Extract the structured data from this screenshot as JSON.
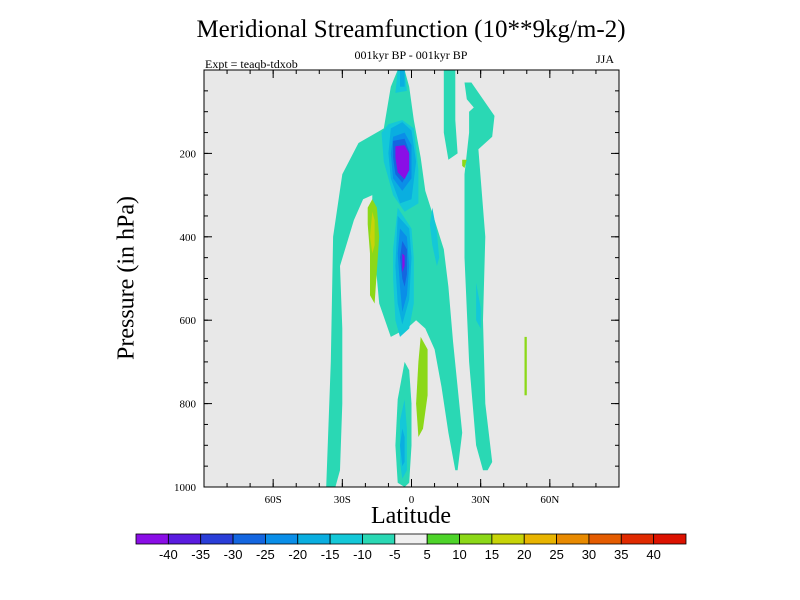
{
  "chart_data": {
    "type": "heatmap",
    "title": "Meridional Streamfunction (10**9kg/m-2)",
    "subtitle": "001kyr BP - 001kyr BP",
    "experiment_label": "Expt = teaqb-tdxob",
    "season_label": "JJA",
    "xlabel": "Latitude",
    "ylabel": "Pressure (in hPa)",
    "xlim": [
      -90,
      90
    ],
    "ylim": [
      1000,
      0
    ],
    "x_ticks": [
      {
        "value": -60,
        "label": "60S"
      },
      {
        "value": -30,
        "label": "30S"
      },
      {
        "value": 0,
        "label": "0"
      },
      {
        "value": 30,
        "label": "30N"
      },
      {
        "value": 60,
        "label": "60N"
      }
    ],
    "y_ticks": [
      {
        "value": 200,
        "label": "200"
      },
      {
        "value": 400,
        "label": "400"
      },
      {
        "value": 600,
        "label": "600"
      },
      {
        "value": 800,
        "label": "800"
      },
      {
        "value": 1000,
        "label": "1000"
      }
    ],
    "background_color": "#e8e8e8",
    "colorbar": {
      "labels": [
        "-40",
        "-35",
        "-30",
        "-25",
        "-20",
        "-15",
        "-10",
        "-5",
        "5",
        "10",
        "15",
        "20",
        "25",
        "30",
        "35",
        "40"
      ],
      "colors": [
        "#8a0ee6",
        "#5a1ce0",
        "#2a3ed8",
        "#1466e0",
        "#0a8ee8",
        "#0aaee0",
        "#14c8d8",
        "#2ad8b4",
        "#f0f0f0",
        "#4ed42a",
        "#8cd818",
        "#c8d408",
        "#e8b400",
        "#e88a00",
        "#e45c00",
        "#e02a00",
        "#dc1200"
      ]
    },
    "regions": [
      {
        "level": "-5",
        "points": [
          [
            -35,
            1000
          ],
          [
            -37,
            1000
          ],
          [
            -35,
            700
          ],
          [
            -34,
            400
          ],
          [
            -30,
            250
          ],
          [
            -23,
            175
          ],
          [
            -12,
            140
          ],
          [
            -9,
            40
          ],
          [
            -6,
            0
          ],
          [
            -3,
            0
          ],
          [
            -1,
            40
          ],
          [
            1,
            120
          ],
          [
            4,
            210
          ],
          [
            6,
            290
          ],
          [
            10,
            360
          ],
          [
            14,
            430
          ],
          [
            16,
            520
          ],
          [
            18,
            650
          ],
          [
            22,
            870
          ],
          [
            20,
            960
          ],
          [
            19,
            960
          ],
          [
            16,
            870
          ],
          [
            13,
            760
          ],
          [
            10,
            670
          ],
          [
            6,
            620
          ],
          [
            2,
            600
          ],
          [
            -2,
            620
          ],
          [
            -9,
            640
          ],
          [
            -14,
            560
          ],
          [
            -17,
            380
          ],
          [
            -17,
            300
          ],
          [
            -21,
            310
          ],
          [
            -25,
            360
          ],
          [
            -31,
            470
          ],
          [
            -30,
            620
          ],
          [
            -30,
            800
          ],
          [
            -31,
            960
          ],
          [
            -33,
            1000
          ]
        ]
      },
      {
        "level": "-5",
        "points": [
          [
            14,
            0
          ],
          [
            19,
            0
          ],
          [
            19,
            120
          ],
          [
            20,
            200
          ],
          [
            16,
            215
          ],
          [
            14,
            150
          ]
        ]
      },
      {
        "level": "-5",
        "points": [
          [
            23,
            30
          ],
          [
            26,
            30
          ],
          [
            31,
            70
          ],
          [
            36,
            110
          ],
          [
            35,
            160
          ],
          [
            29,
            190
          ],
          [
            32,
            400
          ],
          [
            31,
            600
          ],
          [
            32,
            800
          ],
          [
            35,
            940
          ],
          [
            33,
            960
          ],
          [
            31,
            960
          ],
          [
            28,
            900
          ],
          [
            25,
            700
          ],
          [
            23,
            450
          ],
          [
            23,
            250
          ],
          [
            25,
            150
          ],
          [
            25,
            100
          ],
          [
            27,
            90
          ],
          [
            24,
            70
          ]
        ]
      },
      {
        "level": "-5",
        "points": [
          [
            -3,
            700
          ],
          [
            -6,
            790
          ],
          [
            -7,
            900
          ],
          [
            -6,
            990
          ],
          [
            -3,
            1000
          ],
          [
            -1,
            990
          ],
          [
            0,
            900
          ],
          [
            0,
            800
          ],
          [
            -1,
            720
          ]
        ]
      },
      {
        "level": "-10",
        "points": [
          [
            -6,
            0
          ],
          [
            -3,
            0
          ],
          [
            -2,
            50
          ],
          [
            -7,
            55
          ]
        ]
      },
      {
        "level": "-10",
        "points": [
          [
            -10,
            130
          ],
          [
            -4,
            120
          ],
          [
            1,
            140
          ],
          [
            3,
            240
          ],
          [
            3,
            320
          ],
          [
            -3,
            340
          ],
          [
            -8,
            300
          ],
          [
            -12,
            220
          ],
          [
            -13,
            150
          ]
        ]
      },
      {
        "level": "-10",
        "points": [
          [
            -6,
            330
          ],
          [
            0,
            380
          ],
          [
            1,
            450
          ],
          [
            1,
            560
          ],
          [
            -1,
            620
          ],
          [
            -5,
            640
          ],
          [
            -7,
            600
          ],
          [
            -8,
            500
          ],
          [
            -8,
            430
          ]
        ]
      },
      {
        "level": "-10",
        "points": [
          [
            -3,
            790
          ],
          [
            -5,
            840
          ],
          [
            -5,
            940
          ],
          [
            -4,
            980
          ],
          [
            -2,
            960
          ],
          [
            -2,
            860
          ]
        ]
      },
      {
        "level": "-10",
        "points": [
          [
            9,
            330
          ],
          [
            11,
            390
          ],
          [
            12,
            450
          ],
          [
            11,
            470
          ],
          [
            9,
            420
          ],
          [
            8,
            370
          ]
        ]
      },
      {
        "level": "-10",
        "points": [
          [
            28,
            510
          ],
          [
            30,
            570
          ],
          [
            30,
            620
          ],
          [
            28,
            600
          ]
        ]
      },
      {
        "level": "-15",
        "points": [
          [
            -5,
            0
          ],
          [
            -3,
            0
          ],
          [
            -3,
            40
          ],
          [
            -5,
            40
          ]
        ]
      },
      {
        "level": "-15",
        "points": [
          [
            -9,
            140
          ],
          [
            -4,
            125
          ],
          [
            0,
            145
          ],
          [
            2,
            220
          ],
          [
            0,
            310
          ],
          [
            -5,
            320
          ],
          [
            -9,
            260
          ],
          [
            -10,
            200
          ]
        ]
      },
      {
        "level": "-15",
        "points": [
          [
            -6,
            350
          ],
          [
            -1,
            380
          ],
          [
            0,
            450
          ],
          [
            -1,
            550
          ],
          [
            -4,
            610
          ],
          [
            -6,
            560
          ],
          [
            -7,
            470
          ]
        ]
      },
      {
        "level": "-15",
        "points": [
          [
            -4,
            860
          ],
          [
            -3,
            880
          ],
          [
            -3,
            940
          ],
          [
            -4,
            950
          ],
          [
            -5,
            900
          ]
        ]
      },
      {
        "level": "-20",
        "points": [
          [
            -8,
            160
          ],
          [
            -3,
            150
          ],
          [
            0,
            180
          ],
          [
            0,
            260
          ],
          [
            -4,
            290
          ],
          [
            -8,
            260
          ],
          [
            -9,
            200
          ]
        ]
      },
      {
        "level": "-20",
        "points": [
          [
            -5,
            380
          ],
          [
            -2,
            400
          ],
          [
            -1,
            470
          ],
          [
            -2,
            540
          ],
          [
            -4,
            580
          ],
          [
            -5,
            520
          ],
          [
            -6,
            440
          ]
        ]
      },
      {
        "level": "-25",
        "points": [
          [
            -8,
            170
          ],
          [
            -3,
            165
          ],
          [
            -1,
            195
          ],
          [
            -1,
            240
          ],
          [
            -4,
            270
          ],
          [
            -7,
            250
          ],
          [
            -8,
            210
          ]
        ]
      },
      {
        "level": "-25",
        "points": [
          [
            -4,
            410
          ],
          [
            -2,
            430
          ],
          [
            -2,
            490
          ],
          [
            -3,
            520
          ],
          [
            -4,
            500
          ],
          [
            -5,
            450
          ]
        ]
      },
      {
        "level": "-40",
        "points": [
          [
            -7,
            183
          ],
          [
            -3,
            180
          ],
          [
            -1,
            200
          ],
          [
            -1,
            240
          ],
          [
            -3,
            262
          ],
          [
            -6,
            245
          ],
          [
            -7,
            210
          ]
        ]
      },
      {
        "level": "-40",
        "points": [
          [
            -4,
            440
          ],
          [
            -3,
            445
          ],
          [
            -3,
            470
          ],
          [
            -4,
            485
          ],
          [
            -4,
            465
          ]
        ]
      },
      {
        "level": "10",
        "points": [
          [
            -17,
            310
          ],
          [
            -15,
            330
          ],
          [
            -14,
            400
          ],
          [
            -15,
            480
          ],
          [
            -16,
            560
          ],
          [
            -18,
            540
          ],
          [
            -18,
            440
          ],
          [
            -19,
            370
          ],
          [
            -19,
            330
          ]
        ]
      },
      {
        "level": "10",
        "points": [
          [
            4,
            640
          ],
          [
            7,
            670
          ],
          [
            7,
            780
          ],
          [
            5,
            860
          ],
          [
            3,
            880
          ],
          [
            2,
            800
          ],
          [
            3,
            700
          ]
        ]
      },
      {
        "level": "10",
        "points": [
          [
            22,
            215
          ],
          [
            24,
            215
          ],
          [
            23,
            235
          ],
          [
            22,
            230
          ]
        ]
      },
      {
        "level": "10",
        "points": [
          [
            49,
            640
          ],
          [
            50,
            640
          ],
          [
            50,
            780
          ],
          [
            49,
            780
          ]
        ]
      },
      {
        "level": "15",
        "points": [
          [
            -17,
            340
          ],
          [
            -16,
            360
          ],
          [
            -16,
            420
          ],
          [
            -17,
            440
          ],
          [
            -18,
            400
          ]
        ]
      }
    ]
  }
}
